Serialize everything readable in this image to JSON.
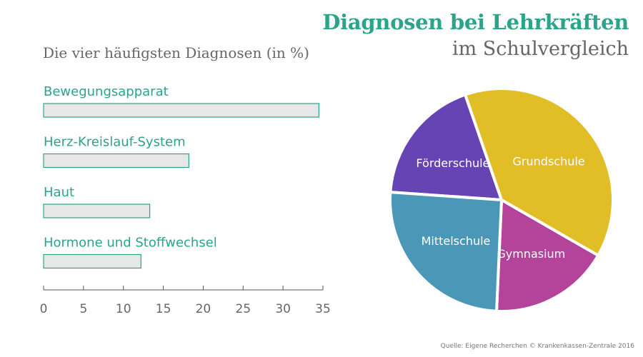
{
  "header": {
    "title": "Diagnosen bei Lehrkräften",
    "subtitle": "im Schulvergleich"
  },
  "source": "Quelle: Eigene Recherchen © Krankenkassen-Zentrale 2016",
  "colors": {
    "accent": "#2aa58a",
    "bar_fill": "#e7e7e7",
    "bar_stroke": "#2aa58a",
    "axis": "#555555"
  },
  "chart_data": [
    {
      "type": "bar",
      "orientation": "horizontal",
      "title": "Die vier häufigsten Diagnosen (in %)",
      "categories": [
        "Bewegungsapparat",
        "Herz-Kreislauf-System",
        "Haut",
        "Hormone und Stoffwechsel"
      ],
      "values": [
        34.5,
        18.2,
        13.3,
        12.2
      ],
      "xlim": [
        0,
        35
      ],
      "xticks": [
        0,
        5,
        10,
        15,
        20,
        25,
        30,
        35
      ],
      "grid": false
    },
    {
      "type": "pie",
      "labels": [
        "Förderschule",
        "Grundschule",
        "Gymnasium",
        "Mittelschule"
      ],
      "values": [
        18.6,
        38.6,
        17.4,
        25.4
      ],
      "colors": [
        "#6644b4",
        "#e1bd26",
        "#b4439a",
        "#4a97b8"
      ],
      "label_color": "#ffffff"
    }
  ]
}
